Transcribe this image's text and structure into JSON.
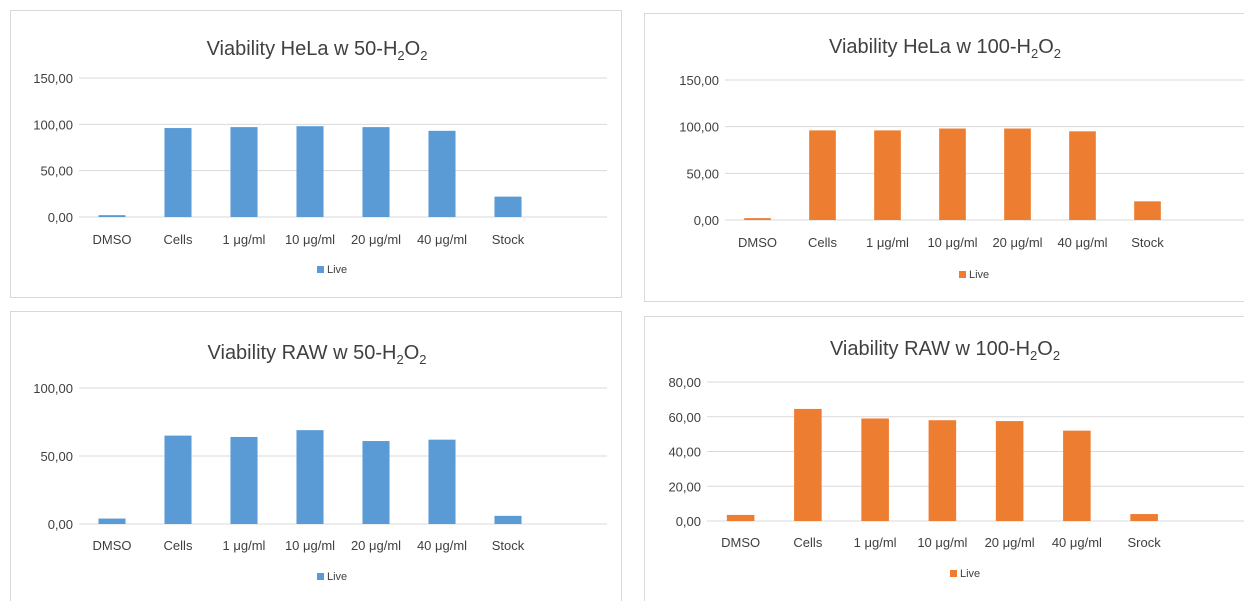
{
  "chart_data": [
    {
      "type": "bar",
      "title": "Viability HeLa w 50-H₂O₂",
      "title_main": "Viability HeLa w 50-H",
      "title_sub1": "2",
      "title_mid": "O",
      "title_sub2": "2",
      "categories": [
        "DMSO",
        "Cells",
        "1 μg/ml",
        "10 μg/ml",
        "20 μg/ml",
        "40 μg/ml",
        "Stock"
      ],
      "series": [
        {
          "name": "Live",
          "values": [
            2,
            96,
            97,
            98,
            97,
            93,
            22
          ]
        }
      ],
      "ylim": [
        0,
        150
      ],
      "yticks": [
        0,
        50,
        100,
        150
      ],
      "ytick_labels": [
        "0,00",
        "50,00",
        "100,00",
        "150,00"
      ],
      "color": "#5b9bd5",
      "grid": true,
      "legend_position": "bottom"
    },
    {
      "type": "bar",
      "title": "Viability HeLa w 100-H₂O₂",
      "title_main": "Viability HeLa w 100-H",
      "title_sub1": "2",
      "title_mid": "O",
      "title_sub2": "2",
      "categories": [
        "DMSO",
        "Cells",
        "1 μg/ml",
        "10 μg/ml",
        "20 μg/ml",
        "40 μg/ml",
        "Stock"
      ],
      "series": [
        {
          "name": "Live",
          "values": [
            2,
            96,
            96,
            98,
            98,
            95,
            20
          ]
        }
      ],
      "ylim": [
        0,
        150
      ],
      "yticks": [
        0,
        50,
        100,
        150
      ],
      "ytick_labels": [
        "0,00",
        "50,00",
        "100,00",
        "150,00"
      ],
      "color": "#ed7d31",
      "grid": true,
      "legend_position": "bottom"
    },
    {
      "type": "bar",
      "title": "Viability RAW w 50-H₂O₂",
      "title_main": "Viability RAW w 50-H",
      "title_sub1": "2",
      "title_mid": "O",
      "title_sub2": "2",
      "categories": [
        "DMSO",
        "Cells",
        "1 μg/ml",
        "10 μg/ml",
        "20 μg/ml",
        "40 μg/ml",
        "Stock"
      ],
      "series": [
        {
          "name": "Live",
          "values": [
            4,
            65,
            64,
            69,
            61,
            62,
            6
          ]
        }
      ],
      "ylim": [
        0,
        100
      ],
      "yticks": [
        0,
        50,
        100
      ],
      "ytick_labels": [
        "0,00",
        "50,00",
        "100,00"
      ],
      "color": "#5b9bd5",
      "grid": true,
      "legend_position": "bottom"
    },
    {
      "type": "bar",
      "title": "Viability RAW w 100-H₂O₂",
      "title_main": "Viability RAW w 100-H",
      "title_sub1": "2",
      "title_mid": "O",
      "title_sub2": "2",
      "categories": [
        "DMSO",
        "Cells",
        "1 μg/ml",
        "10 μg/ml",
        "20 μg/ml",
        "40 μg/ml",
        "Srock"
      ],
      "series": [
        {
          "name": "Live",
          "values": [
            3.5,
            64.5,
            59,
            58,
            57.5,
            52,
            4
          ]
        }
      ],
      "ylim": [
        0,
        80
      ],
      "yticks": [
        0,
        20,
        40,
        60,
        80
      ],
      "ytick_labels": [
        "0,00",
        "20,00",
        "40,00",
        "60,00",
        "80,00"
      ],
      "color": "#ed7d31",
      "grid": true,
      "legend_position": "bottom"
    }
  ]
}
